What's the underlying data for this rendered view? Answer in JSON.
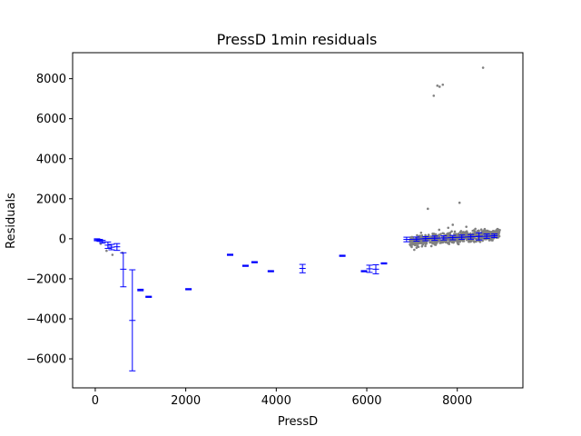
{
  "chart_data": {
    "type": "scatter",
    "title": "PressD 1min residuals",
    "xlabel": "PressD",
    "ylabel": "Residuals",
    "xlim": [
      -500,
      9450
    ],
    "ylim": [
      -7450,
      9300
    ],
    "xticks": [
      0,
      2000,
      4000,
      6000,
      8000
    ],
    "yticks": [
      -6000,
      -4000,
      -2000,
      0,
      2000,
      4000,
      6000,
      8000
    ],
    "grid": false,
    "colors": {
      "scatter": "#808080",
      "errorbar": "#0000ff"
    },
    "scatter_points": [
      {
        "x": 7480,
        "y": 7150
      },
      {
        "x": 7560,
        "y": 7650
      },
      {
        "x": 7610,
        "y": 7600
      },
      {
        "x": 7680,
        "y": 7700
      },
      {
        "x": 8570,
        "y": 8550
      },
      {
        "x": 7350,
        "y": 1500
      },
      {
        "x": 8050,
        "y": 1800
      },
      {
        "x": 7900,
        "y": 700
      },
      {
        "x": 7800,
        "y": 550
      },
      {
        "x": 8200,
        "y": 600
      },
      {
        "x": 8400,
        "y": 500
      },
      {
        "x": 7600,
        "y": 450
      },
      {
        "x": 8650,
        "y": 400
      },
      {
        "x": 7200,
        "y": 300
      },
      {
        "x": 7100,
        "y": -450
      },
      {
        "x": 7000,
        "y": -300
      },
      {
        "x": 7050,
        "y": -550
      },
      {
        "x": 380,
        "y": -800
      },
      {
        "x": 250,
        "y": -600
      },
      {
        "x": 600,
        "y": -700
      },
      {
        "x": 120,
        "y": -250
      }
    ],
    "scatter_cluster": {
      "x_min": 6950,
      "x_max": 8950,
      "y_start": -150,
      "y_end": 250,
      "spread": 260
    },
    "errorbars": [
      {
        "x": 40,
        "y": -50,
        "low": -100,
        "high": 0
      },
      {
        "x": 100,
        "y": -80,
        "low": -130,
        "high": -30
      },
      {
        "x": 160,
        "y": -150,
        "low": -220,
        "high": -80
      },
      {
        "x": 280,
        "y": -320,
        "low": -480,
        "high": -160
      },
      {
        "x": 360,
        "y": -420,
        "low": -550,
        "high": -280
      },
      {
        "x": 480,
        "y": -400,
        "low": -580,
        "high": -240
      },
      {
        "x": 620,
        "y": -1520,
        "low": -2400,
        "high": -700
      },
      {
        "x": 820,
        "y": -4080,
        "low": -6600,
        "high": -1550
      },
      {
        "x": 1000,
        "y": -2560,
        "low": -2600,
        "high": -2520
      },
      {
        "x": 1180,
        "y": -2900,
        "low": -2930,
        "high": -2870
      },
      {
        "x": 2060,
        "y": -2520,
        "low": -2550,
        "high": -2490
      },
      {
        "x": 2980,
        "y": -800,
        "low": -830,
        "high": -770
      },
      {
        "x": 3320,
        "y": -1350,
        "low": -1380,
        "high": -1320
      },
      {
        "x": 3520,
        "y": -1170,
        "low": -1200,
        "high": -1140
      },
      {
        "x": 3880,
        "y": -1620,
        "low": -1650,
        "high": -1590
      },
      {
        "x": 4580,
        "y": -1480,
        "low": -1700,
        "high": -1280
      },
      {
        "x": 5460,
        "y": -850,
        "low": -880,
        "high": -820
      },
      {
        "x": 5940,
        "y": -1620,
        "low": -1650,
        "high": -1590
      },
      {
        "x": 6060,
        "y": -1500,
        "low": -1680,
        "high": -1320
      },
      {
        "x": 6200,
        "y": -1520,
        "low": -1750,
        "high": -1300
      },
      {
        "x": 6380,
        "y": -1230,
        "low": -1260,
        "high": -1200
      },
      {
        "x": 6880,
        "y": -30,
        "low": -150,
        "high": 80
      },
      {
        "x": 7100,
        "y": -20,
        "low": -120,
        "high": 90
      },
      {
        "x": 7300,
        "y": 10,
        "low": -100,
        "high": 110
      },
      {
        "x": 7500,
        "y": 30,
        "low": -80,
        "high": 140
      },
      {
        "x": 7700,
        "y": 40,
        "low": -60,
        "high": 150
      },
      {
        "x": 7900,
        "y": 60,
        "low": -50,
        "high": 170
      },
      {
        "x": 8100,
        "y": 80,
        "low": -30,
        "high": 190
      },
      {
        "x": 8300,
        "y": 100,
        "low": -20,
        "high": 210
      },
      {
        "x": 8480,
        "y": 120,
        "low": -60,
        "high": 300
      },
      {
        "x": 8650,
        "y": 130,
        "low": 20,
        "high": 240
      },
      {
        "x": 8820,
        "y": 150,
        "low": 60,
        "high": 240
      }
    ]
  }
}
